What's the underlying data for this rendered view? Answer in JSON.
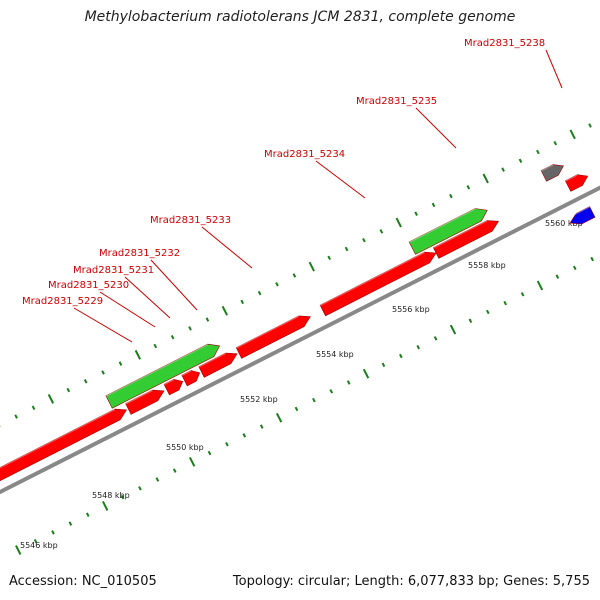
{
  "title": "Methylobacterium radiotolerans JCM 2831, complete genome",
  "footer": {
    "accession_text": "Accession: NC_010505",
    "info_text": "Topology: circular; Length: 6,077,833 bp; Genes: 5,755"
  },
  "colors": {
    "backbone": "#888888",
    "tick": "#1a7f1a",
    "gene_label": "#cc0000",
    "forward_red": "#ff0000",
    "reverse_red": "#ff0000",
    "green": "#33cc33",
    "gray": "#666666",
    "blue": "#0000ee"
  },
  "scale_labels": [
    "5546 kbp",
    "5548 kbp",
    "5550 kbp",
    "5552 kbp",
    "5554 kbp",
    "5556 kbp",
    "5558 kbp",
    "5560 kbp"
  ],
  "gene_labels": [
    "Mrad2831_5229",
    "Mrad2831_5230",
    "Mrad2831_5231",
    "Mrad2831_5232",
    "Mrad2831_5233",
    "Mrad2831_5234",
    "Mrad2831_5235",
    "Mrad2831_5238"
  ]
}
